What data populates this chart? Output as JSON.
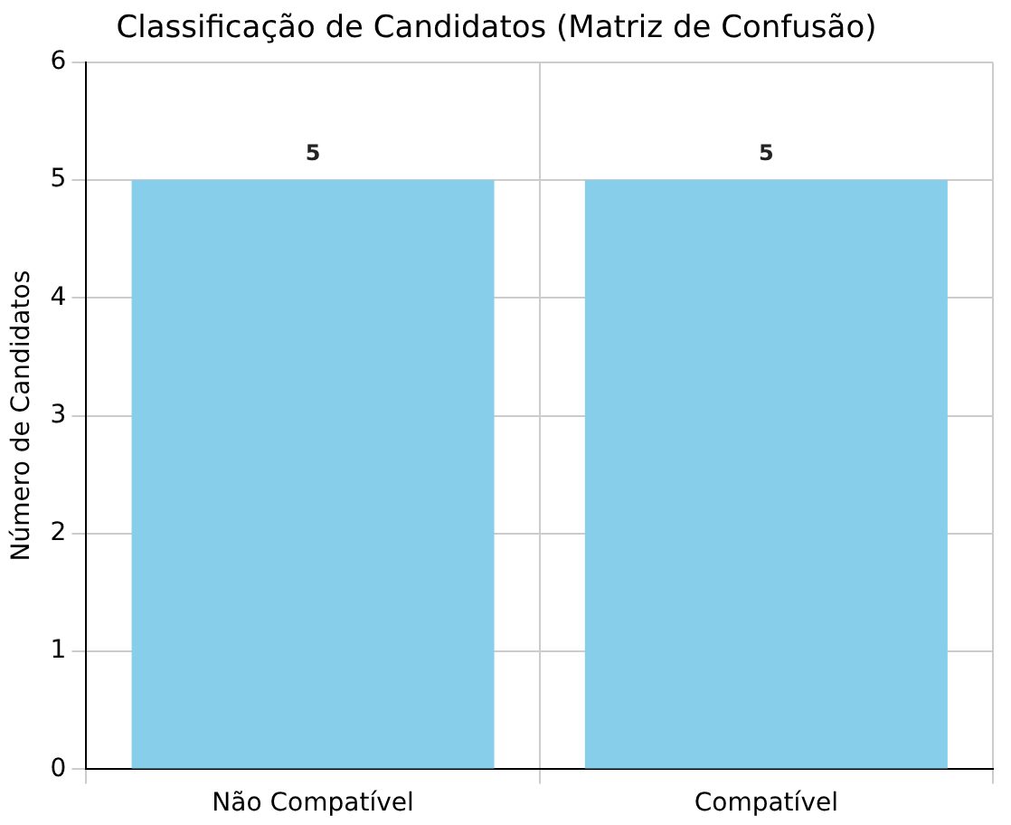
{
  "chart_data": {
    "type": "bar",
    "title": "Classificação de Candidatos (Matriz de Confusão)",
    "ylabel": "Número de Candidatos",
    "categories": [
      "Não Compatível",
      "Compatível"
    ],
    "values": [
      5,
      5
    ],
    "color": "#87ceeb",
    "ylim": [
      0,
      6
    ],
    "yticks": [
      0,
      1,
      2,
      3,
      4,
      5,
      6
    ],
    "grid": true,
    "data_labels": true
  }
}
